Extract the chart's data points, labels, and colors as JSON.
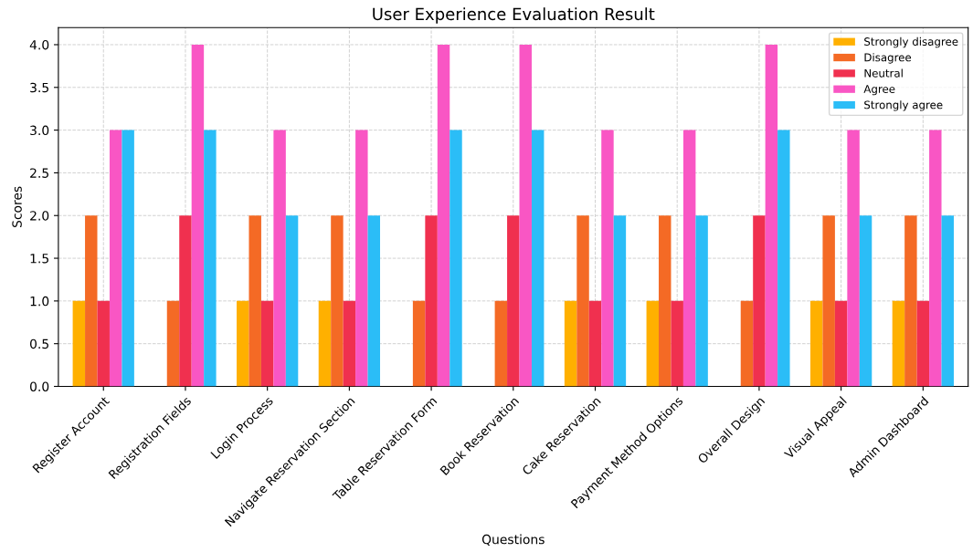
{
  "chart_data": {
    "type": "bar",
    "title": "User Experience Evaluation Result",
    "xlabel": "Questions",
    "ylabel": "Scores",
    "categories": [
      "Register Account",
      "Registration Fields",
      "Login Process",
      "Navigate Reservation Section",
      "Table Reservation Form",
      "Book Reservation",
      "Cake Reservation",
      "Payment Method Options",
      "Overall Design",
      "Visual Appeal",
      "Admin Dashboard"
    ],
    "series": [
      {
        "name": "Strongly disagree",
        "color": "#ffb000",
        "values": [
          1,
          0,
          1,
          1,
          0,
          0,
          1,
          1,
          0,
          1,
          1
        ]
      },
      {
        "name": "Disagree",
        "color": "#f46a25",
        "values": [
          2,
          1,
          2,
          2,
          1,
          1,
          2,
          2,
          1,
          2,
          2
        ]
      },
      {
        "name": "Neutral",
        "color": "#f0304f",
        "values": [
          1,
          2,
          1,
          1,
          2,
          2,
          1,
          1,
          2,
          1,
          1
        ]
      },
      {
        "name": "Agree",
        "color": "#f956c4",
        "values": [
          3,
          4,
          3,
          3,
          4,
          4,
          3,
          3,
          4,
          3,
          3
        ]
      },
      {
        "name": "Strongly agree",
        "color": "#2bbdf7",
        "values": [
          3,
          3,
          2,
          2,
          3,
          3,
          2,
          2,
          3,
          2,
          2
        ]
      }
    ],
    "ylim": [
      0,
      4.2
    ],
    "yticks": [
      {
        "value": 0,
        "label": "0.0"
      },
      {
        "value": 0.5,
        "label": "0.5"
      },
      {
        "value": 1,
        "label": "1.0"
      },
      {
        "value": 1.5,
        "label": "1.5"
      },
      {
        "value": 2,
        "label": "2.0"
      },
      {
        "value": 2.5,
        "label": "2.5"
      },
      {
        "value": 3,
        "label": "3.0"
      },
      {
        "value": 3.5,
        "label": "3.5"
      },
      {
        "value": 4,
        "label": "4.0"
      }
    ],
    "grid": true,
    "legend": "top right"
  }
}
